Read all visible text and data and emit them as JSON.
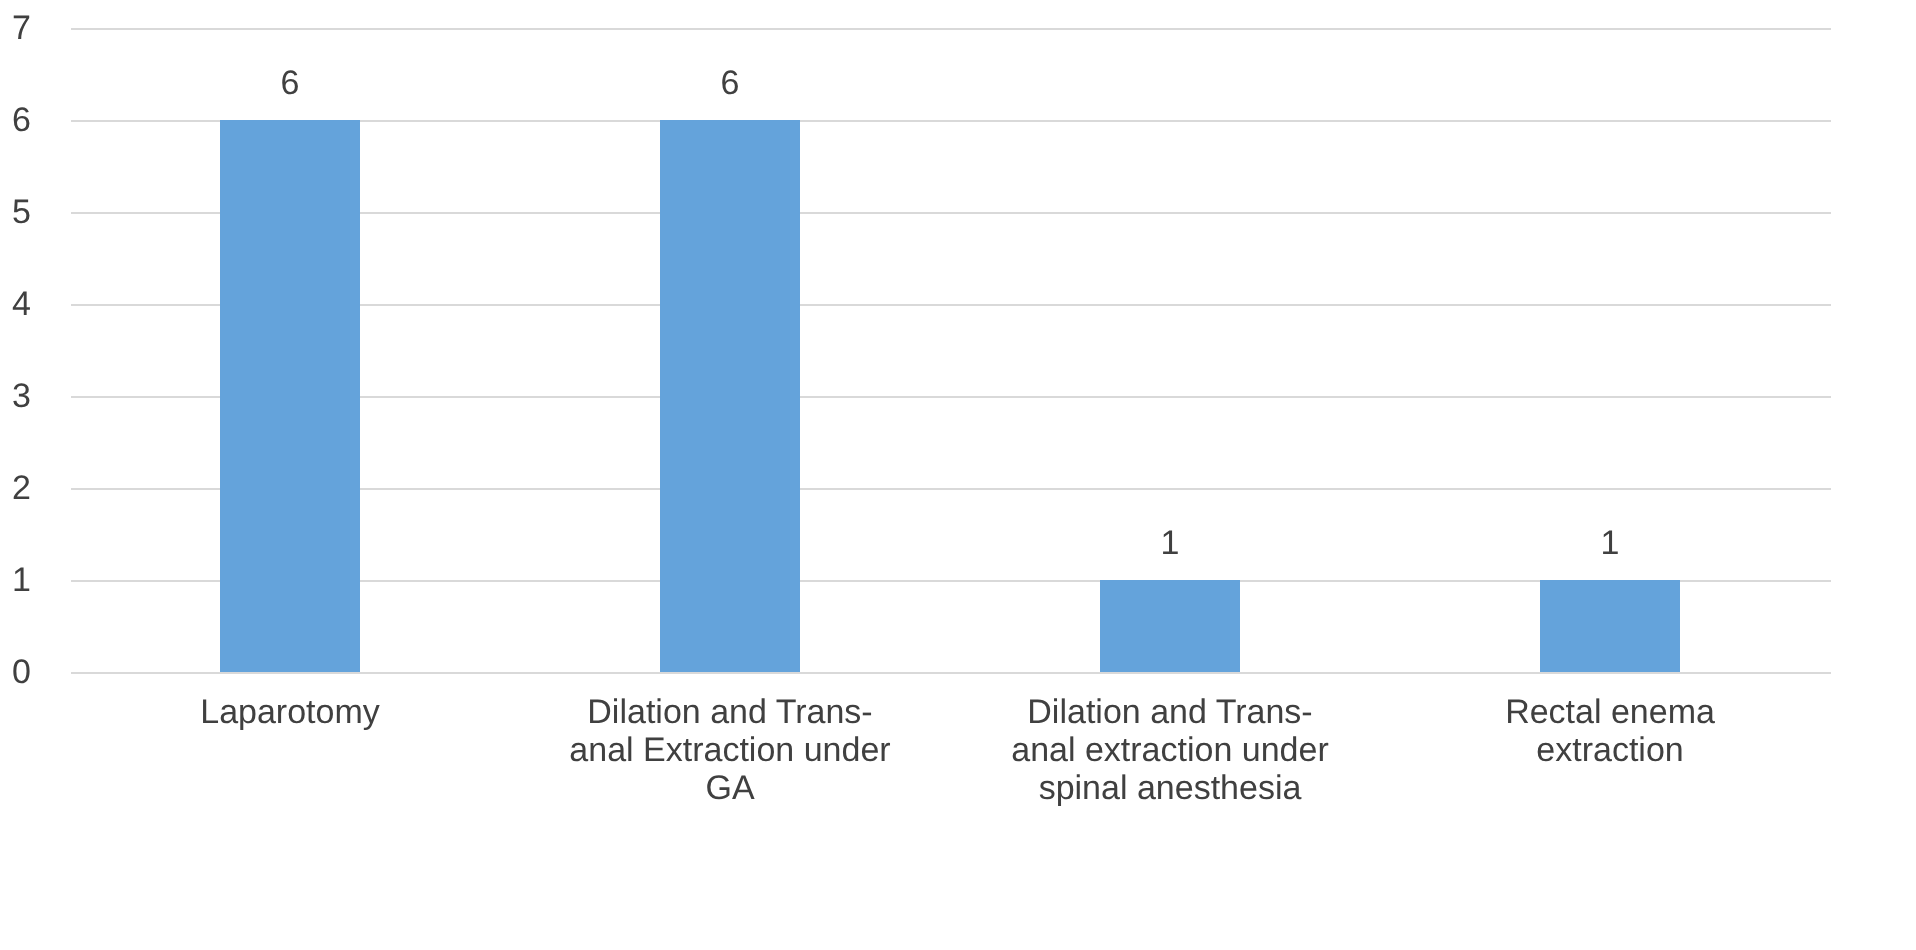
{
  "chart_data": {
    "type": "bar",
    "categories": [
      "Laparotomy",
      "Dilation and Trans-anal Extraction under GA",
      "Dilation and Trans-anal extraction under spinal anesthesia",
      "Rectal enema extraction"
    ],
    "values": [
      6,
      6,
      1,
      1
    ],
    "color": "#64a3db",
    "ylim": [
      0,
      7
    ],
    "yticks": [
      0,
      1,
      2,
      3,
      4,
      5,
      6,
      7
    ],
    "grid": "y",
    "data_labels": true
  }
}
